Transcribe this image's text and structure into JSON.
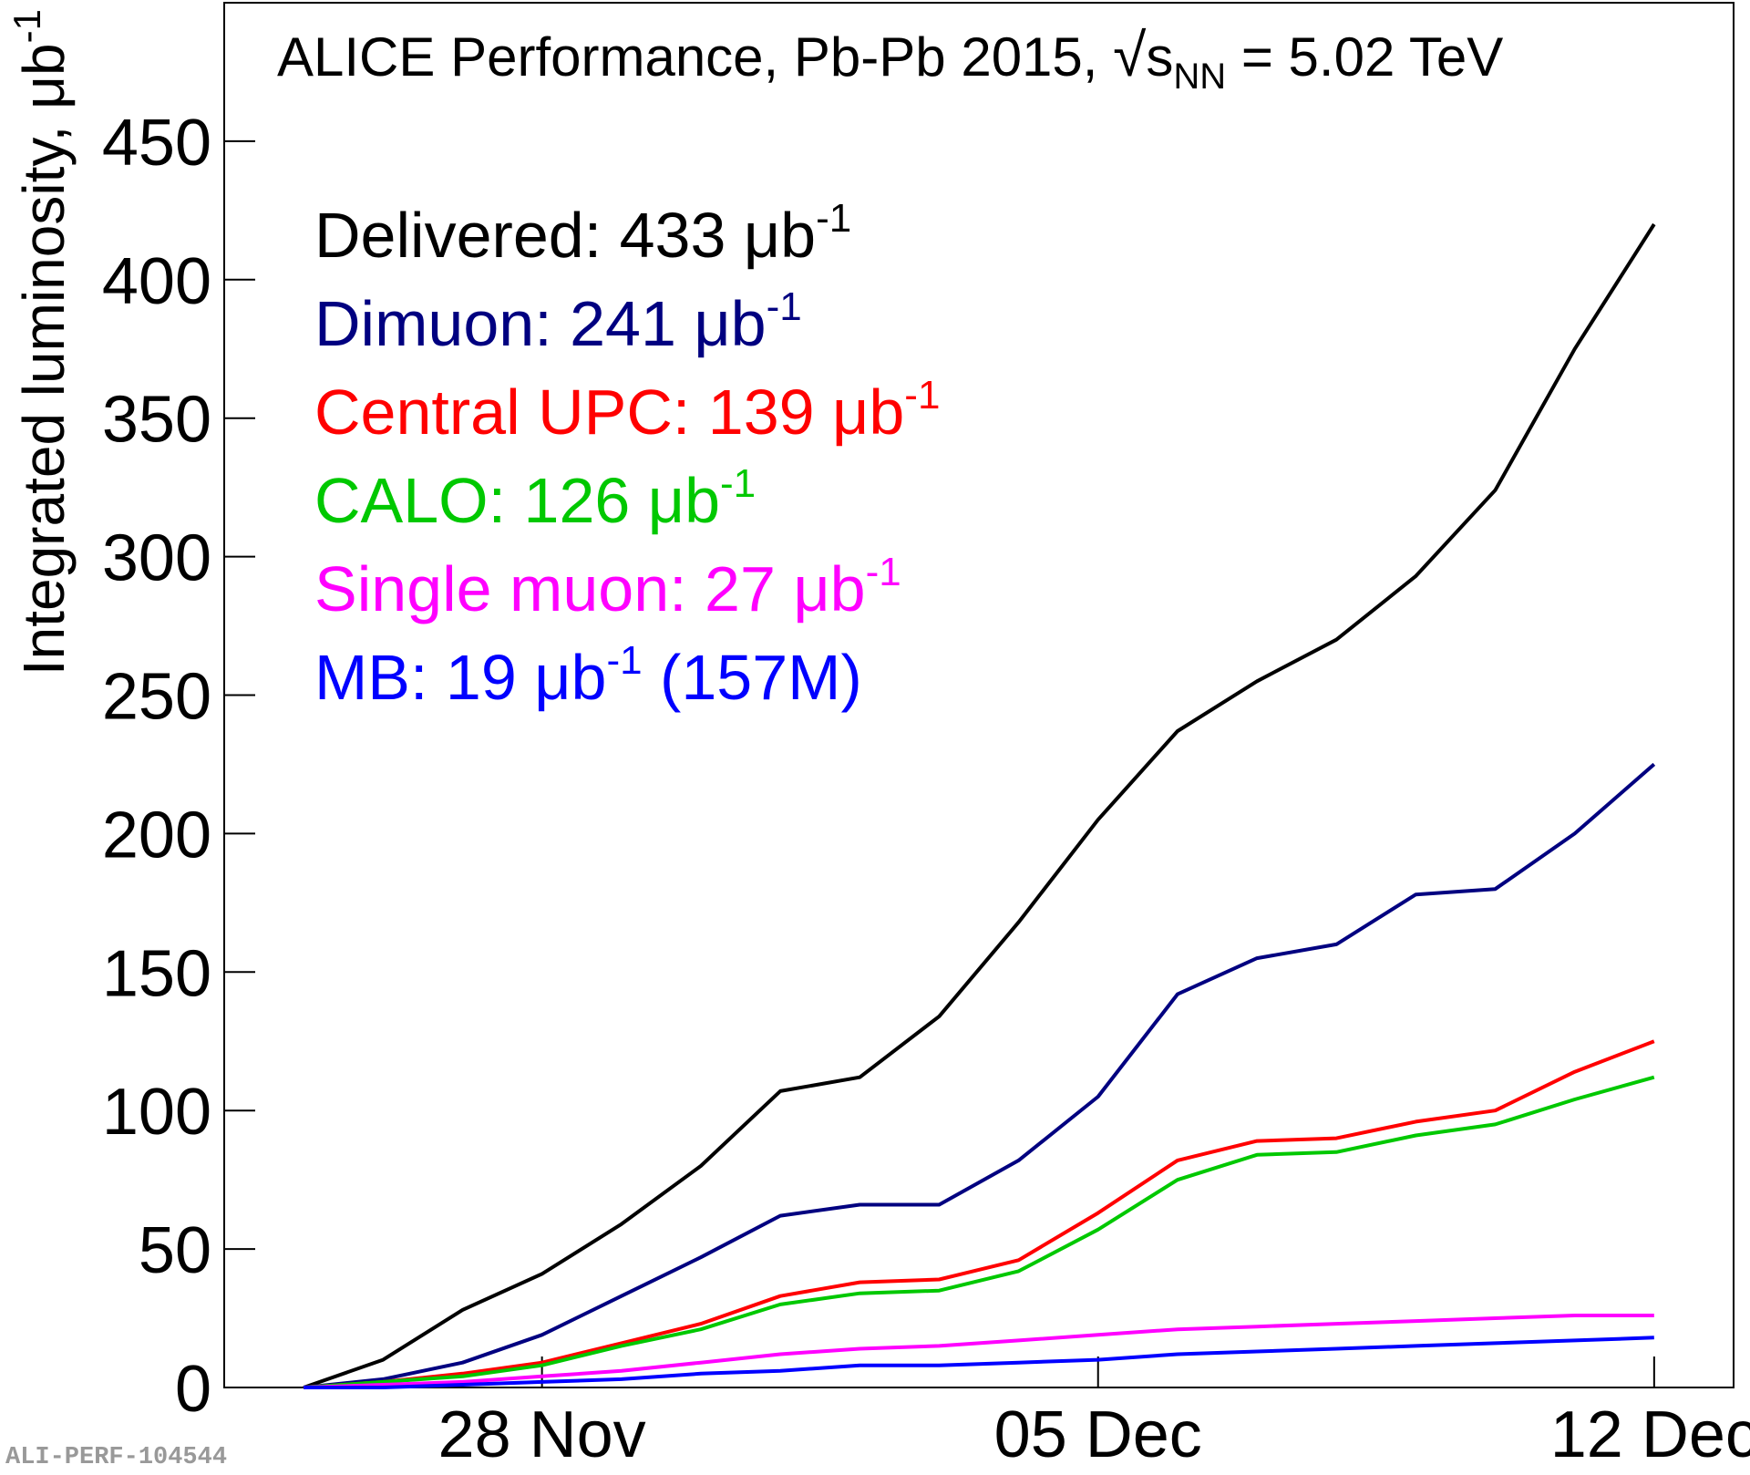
{
  "chart_data": {
    "type": "line",
    "title_parts": [
      "ALICE Performance, Pb-Pb 2015, ",
      "√",
      "s",
      "NN",
      " = 5.02 TeV"
    ],
    "y_label": "Integrated luminosity, μb",
    "y_label_exponent": "-1",
    "legend_exponent": "-1",
    "watermark": "ALI-PERF-104544",
    "x": [
      "25 Nov",
      "26 Nov",
      "27 Nov",
      "28 Nov",
      "29 Nov",
      "30 Nov",
      "01 Dec",
      "02 Dec",
      "03 Dec",
      "04 Dec",
      "05 Dec",
      "06 Dec",
      "07 Dec",
      "08 Dec",
      "09 Dec",
      "10 Dec",
      "11 Dec",
      "12 Dec"
    ],
    "xlim": [
      "24 Nov",
      "13 Dec"
    ],
    "xticks": [
      "28 Nov",
      "05 Dec",
      "12 Dec"
    ],
    "ylim": [
      0,
      500
    ],
    "yticks": [
      0,
      50,
      100,
      150,
      200,
      250,
      300,
      350,
      400,
      450
    ],
    "series": [
      {
        "name": "Delivered: 433 μb",
        "color": "#000000",
        "values": [
          0,
          10,
          28,
          41,
          59,
          80,
          107,
          112,
          134,
          168,
          205,
          237,
          255,
          270,
          293,
          324,
          375,
          420
        ]
      },
      {
        "name": "Dimuon: 241 μb",
        "color": "#000080",
        "values": [
          0,
          3,
          9,
          19,
          33,
          47,
          62,
          66,
          66,
          82,
          105,
          142,
          155,
          160,
          178,
          180,
          200,
          225
        ]
      },
      {
        "name": "Central UPC: 139 μb",
        "color": "#ff0000",
        "values": [
          0,
          2,
          5,
          9,
          16,
          23,
          33,
          38,
          39,
          46,
          63,
          82,
          89,
          90,
          96,
          100,
          114,
          125
        ]
      },
      {
        "name": "CALO: 126 μb",
        "color": "#00c800",
        "values": [
          0,
          2,
          4,
          8,
          15,
          21,
          30,
          34,
          35,
          42,
          57,
          75,
          84,
          85,
          91,
          95,
          104,
          112
        ]
      },
      {
        "name": "Single muon: 27 μb",
        "color": "#ff00ff",
        "values": [
          0,
          1,
          2,
          4,
          6,
          9,
          12,
          14,
          15,
          17,
          19,
          21,
          22,
          23,
          24,
          25,
          26,
          26
        ]
      },
      {
        "name": "MB: 19 μb",
        "name_suffix": " (157M)",
        "color": "#0000ff",
        "values": [
          0,
          0,
          1,
          2,
          3,
          5,
          6,
          8,
          8,
          9,
          10,
          12,
          13,
          14,
          15,
          16,
          17,
          18
        ]
      }
    ]
  }
}
